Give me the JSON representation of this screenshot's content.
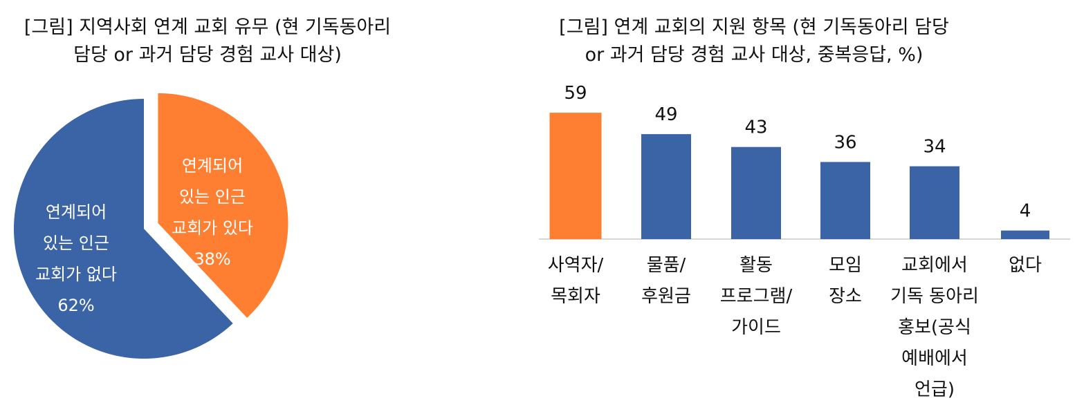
{
  "chart_data": [
    {
      "type": "pie",
      "title_lines": [
        "[그림] 지역사회 연계 교회 유무 (현 기독동아리",
        "담당 or 과거 담당 경험 교사 대상)"
      ],
      "slices": [
        {
          "label_lines": [
            "연계되어",
            "있는 인근",
            "교회가 있다",
            "38%"
          ],
          "value": 38,
          "color": "#FF7F32"
        },
        {
          "label_lines": [
            "연계되어",
            "있는 인근",
            "교회가 없다",
            "62%"
          ],
          "value": 62,
          "color": "#3A64A5"
        }
      ]
    },
    {
      "type": "bar",
      "title_lines": [
        "[그림] 연계 교회의 지원 항목 (현 기독동아리 담당",
        "or 과거 담당 경험 교사 대상, 중복응답, %)"
      ],
      "categories": [
        [
          "사역자/",
          "목회자"
        ],
        [
          "물품/",
          "후원금"
        ],
        [
          "활동",
          "프로그램/",
          "가이드"
        ],
        [
          "모임",
          "장소"
        ],
        [
          "교회에서",
          "기독 동아리",
          "홍보(공식",
          "예배에서",
          "언급)"
        ],
        [
          "없다"
        ]
      ],
      "values": [
        59,
        49,
        43,
        36,
        34,
        4
      ],
      "value_labels": [
        "59",
        "49",
        "43",
        "36",
        "34",
        "4"
      ],
      "colors": [
        "#FF7F32",
        "#3A64A5",
        "#3A64A5",
        "#3A64A5",
        "#3A64A5",
        "#3A64A5"
      ],
      "ylim": [
        0,
        60
      ]
    }
  ]
}
